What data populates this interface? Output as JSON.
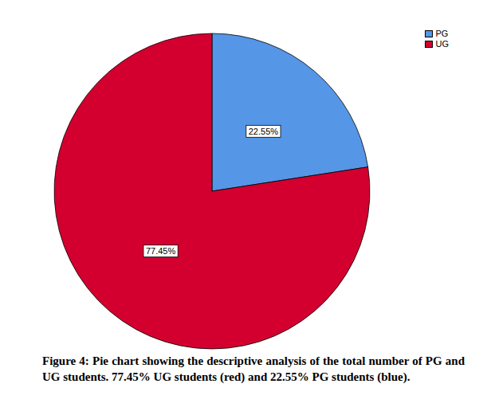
{
  "chart_data": {
    "type": "pie",
    "caption": "Figure 4: Pie chart showing the descriptive analysis of the total number of PG and UG students. 77.45% UG students (red) and 22.55% PG students (blue).",
    "categories": [
      "PG",
      "UG"
    ],
    "values": [
      22.55,
      77.45
    ],
    "value_labels": [
      "22.55%",
      "77.45%"
    ],
    "colors": [
      "#5596e6",
      "#d3002f"
    ],
    "data_labels": true,
    "legend": "top-right"
  }
}
